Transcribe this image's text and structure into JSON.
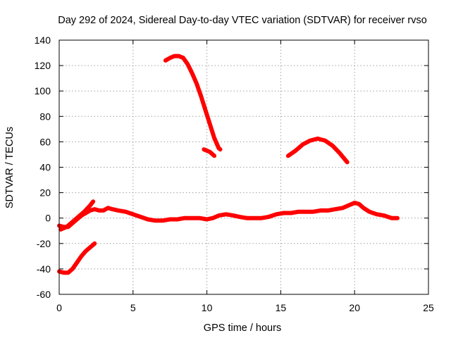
{
  "chart_data": {
    "type": "scatter",
    "title": "Day 292 of 2024, Sidereal Day-to-day VTEC variation (SDTVAR) for receiver rvso",
    "xlabel": "GPS time / hours",
    "ylabel": "SDTVAR / TECUs",
    "xlim": [
      0,
      25
    ],
    "ylim": [
      -60,
      140
    ],
    "xticks": [
      0,
      5,
      10,
      15,
      20,
      25
    ],
    "yticks": [
      -60,
      -40,
      -20,
      0,
      20,
      40,
      60,
      80,
      100,
      120,
      140
    ],
    "grid": true,
    "color": "#ff0000",
    "series": [
      {
        "name": "main",
        "points": [
          [
            0,
            -6
          ],
          [
            0.3,
            -7
          ],
          [
            0.6,
            -7
          ],
          [
            0.9,
            -4
          ],
          [
            1.2,
            -1
          ],
          [
            1.5,
            2
          ],
          [
            1.8,
            4
          ],
          [
            2.1,
            6
          ],
          [
            2.4,
            7
          ],
          [
            2.7,
            6
          ],
          [
            3.0,
            6
          ],
          [
            3.3,
            8
          ],
          [
            3.6,
            7
          ],
          [
            4.0,
            6
          ],
          [
            4.5,
            5
          ],
          [
            5.0,
            3
          ],
          [
            5.5,
            1
          ],
          [
            6.0,
            -1
          ],
          [
            6.5,
            -2
          ],
          [
            7.0,
            -2
          ],
          [
            7.5,
            -1
          ],
          [
            8.0,
            -1
          ],
          [
            8.5,
            0
          ],
          [
            9.0,
            0
          ],
          [
            9.5,
            0
          ],
          [
            10.0,
            -1
          ],
          [
            10.4,
            0
          ],
          [
            10.8,
            2
          ],
          [
            11.3,
            3
          ],
          [
            11.8,
            2
          ],
          [
            12.2,
            1
          ],
          [
            12.7,
            0
          ],
          [
            13.2,
            0
          ],
          [
            13.7,
            0
          ],
          [
            14.2,
            1
          ],
          [
            14.7,
            3
          ],
          [
            15.2,
            4
          ],
          [
            15.7,
            4
          ],
          [
            16.2,
            5
          ],
          [
            16.7,
            5
          ],
          [
            17.2,
            5
          ],
          [
            17.7,
            6
          ],
          [
            18.2,
            6
          ],
          [
            18.7,
            7
          ],
          [
            19.2,
            8
          ],
          [
            19.6,
            10
          ],
          [
            20.0,
            12
          ],
          [
            20.3,
            11
          ],
          [
            20.6,
            8
          ],
          [
            21.0,
            5
          ],
          [
            21.5,
            3
          ],
          [
            22.0,
            2
          ],
          [
            22.5,
            0
          ],
          [
            22.9,
            0
          ]
        ]
      },
      {
        "name": "rise",
        "points": [
          [
            0.1,
            -9
          ],
          [
            0.5,
            -7
          ],
          [
            0.9,
            -3
          ],
          [
            1.3,
            1
          ],
          [
            1.7,
            5
          ],
          [
            2.1,
            10
          ],
          [
            2.3,
            13
          ]
        ]
      },
      {
        "name": "low",
        "points": [
          [
            0,
            -42
          ],
          [
            0.3,
            -43
          ],
          [
            0.6,
            -43
          ],
          [
            0.9,
            -40
          ],
          [
            1.2,
            -35
          ],
          [
            1.5,
            -30
          ],
          [
            1.8,
            -26
          ],
          [
            2.1,
            -23
          ],
          [
            2.4,
            -20
          ]
        ]
      },
      {
        "name": "arc_high",
        "points": [
          [
            7.2,
            124
          ],
          [
            7.5,
            126
          ],
          [
            7.8,
            127.5
          ],
          [
            8.1,
            127.5
          ],
          [
            8.4,
            126
          ],
          [
            8.7,
            121
          ],
          [
            9.0,
            114
          ],
          [
            9.3,
            106
          ],
          [
            9.6,
            96
          ],
          [
            9.9,
            85
          ],
          [
            10.2,
            74
          ],
          [
            10.5,
            63
          ],
          [
            10.8,
            55
          ],
          [
            10.9,
            54
          ]
        ]
      },
      {
        "name": "fragment",
        "points": [
          [
            9.8,
            54
          ],
          [
            10.2,
            52
          ],
          [
            10.5,
            49
          ]
        ]
      },
      {
        "name": "arc_mid",
        "points": [
          [
            15.5,
            49
          ],
          [
            16.0,
            53
          ],
          [
            16.5,
            58
          ],
          [
            17.0,
            61
          ],
          [
            17.5,
            62.5
          ],
          [
            18.0,
            61
          ],
          [
            18.5,
            57
          ],
          [
            19.0,
            51
          ],
          [
            19.5,
            44
          ]
        ]
      }
    ]
  }
}
